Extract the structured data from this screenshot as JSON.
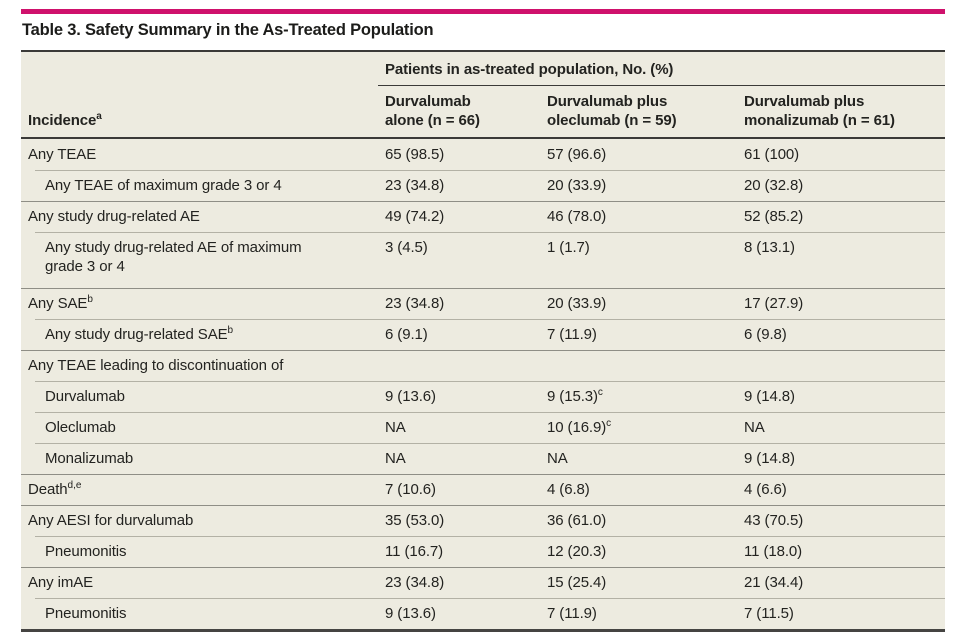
{
  "colors": {
    "accent": "#cf116c",
    "cream": "#edebe0",
    "rule": "#3b3a38",
    "sep": "#8f8e86",
    "sub_sep": "#b3b1a5"
  },
  "table": {
    "title": "Table 3. Safety Summary in the As-Treated Population",
    "span_header": "Patients in as-treated population, No. (%)",
    "stub_header": "Incidence^a",
    "columns": [
      "Durvalumab\nalone (n = 66)",
      "Durvalumab plus\noleclumab (n = 59)",
      "Durvalumab plus\nmonalizumab (n = 61)"
    ],
    "rows": [
      {
        "label": "Any TEAE",
        "indent": 0,
        "values": [
          "65 (98.5)",
          "57 (96.6)",
          "61 (100)"
        ]
      },
      {
        "label": "Any TEAE of maximum grade 3 or 4",
        "indent": 1,
        "values": [
          "23 (34.8)",
          "20 (33.9)",
          "20 (32.8)"
        ]
      },
      {
        "label": "Any study drug-related AE",
        "indent": 0,
        "values": [
          "49 (74.2)",
          "46 (78.0)",
          "52 (85.2)"
        ]
      },
      {
        "label": "Any study drug-related AE of maximum\ngrade 3 or 4",
        "indent": 1,
        "tall": true,
        "values": [
          "3 (4.5)",
          "1 (1.7)",
          "8 (13.1)"
        ]
      },
      {
        "label": "Any SAE^b",
        "indent": 0,
        "values": [
          "23 (34.8)",
          "20 (33.9)",
          "17 (27.9)"
        ]
      },
      {
        "label": "Any study drug-related SAE^b",
        "indent": 1,
        "values": [
          "6 (9.1)",
          "7 (11.9)",
          "6 (9.8)"
        ]
      },
      {
        "label": "Any TEAE leading to discontinuation of",
        "indent": 0,
        "values": [
          "",
          "",
          ""
        ]
      },
      {
        "label": "Durvalumab",
        "indent": 1,
        "values": [
          "9 (13.6)",
          "9 (15.3)^c",
          "9 (14.8)"
        ]
      },
      {
        "label": "Oleclumab",
        "indent": 1,
        "values": [
          "NA",
          "10 (16.9)^c",
          "NA"
        ]
      },
      {
        "label": "Monalizumab",
        "indent": 1,
        "values": [
          "NA",
          "NA",
          "9 (14.8)"
        ]
      },
      {
        "label": "Death^d,e",
        "indent": 0,
        "values": [
          "7 (10.6)",
          "4 (6.8)",
          "4 (6.6)"
        ]
      },
      {
        "label": "Any AESI for durvalumab",
        "indent": 0,
        "values": [
          "35 (53.0)",
          "36 (61.0)",
          "43 (70.5)"
        ]
      },
      {
        "label": "Pneumonitis",
        "indent": 1,
        "values": [
          "11 (16.7)",
          "12 (20.3)",
          "11 (18.0)"
        ]
      },
      {
        "label": "Any imAE",
        "indent": 0,
        "values": [
          "23 (34.8)",
          "15 (25.4)",
          "21 (34.4)"
        ]
      },
      {
        "label": "Pneumonitis",
        "indent": 1,
        "values": [
          "9 (13.6)",
          "7 (11.9)",
          "7 (11.5)"
        ]
      }
    ]
  }
}
